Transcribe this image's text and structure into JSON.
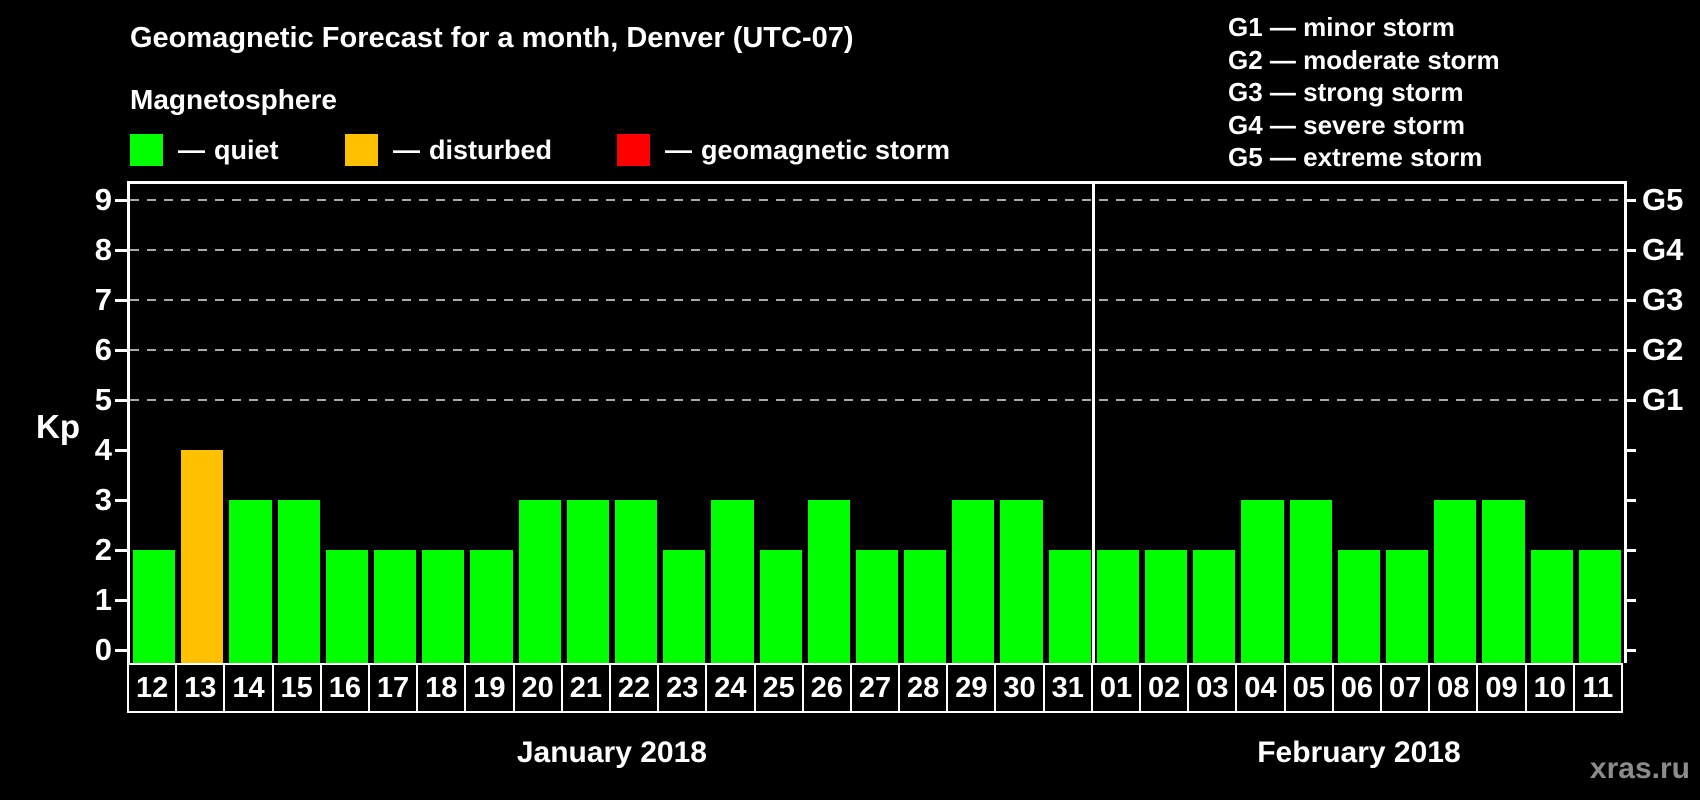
{
  "legend": {
    "separator": "—",
    "items": [
      {
        "name": "quiet",
        "label": "quiet",
        "color": "#00ff00"
      },
      {
        "name": "disturbed",
        "label": "disturbed",
        "color": "#ffc000"
      },
      {
        "name": "storm",
        "label": "geomagnetic storm",
        "color": "#ff0000"
      }
    ]
  },
  "storm_scale": [
    {
      "code": "G1",
      "kp": 5,
      "description": "minor storm"
    },
    {
      "code": "G2",
      "kp": 6,
      "description": "moderate storm"
    },
    {
      "code": "G3",
      "kp": 7,
      "description": "strong storm"
    },
    {
      "code": "G4",
      "kp": 8,
      "description": "severe storm"
    },
    {
      "code": "G5",
      "kp": 9,
      "description": "extreme storm"
    }
  ],
  "watermark": "xras.ru",
  "chart_data": {
    "type": "bar",
    "title": "Geomagnetic Forecast for a month, Denver (UTC-07)",
    "subtitle": "Magnetosphere",
    "ylabel": "Kp",
    "ylim": [
      0,
      9
    ],
    "yticks": [
      0,
      1,
      2,
      3,
      4,
      5,
      6,
      7,
      8,
      9
    ],
    "grid_on": true,
    "grid_levels": [
      5,
      6,
      7,
      8,
      9
    ],
    "legend_position": "top-left",
    "right_axis": "storm-scale G1-G5 at Kp 5-9",
    "colors": {
      "quiet": "#00ff00",
      "disturbed": "#ffc000",
      "storm": "#ff0000",
      "background": "#000000",
      "text": "#ffffff",
      "grid": "#aaaaaa",
      "watermark": "#8c8c8c"
    },
    "color_thresholds": {
      "disturbed_from_kp": 4,
      "storm_from_kp": 5
    },
    "months": [
      {
        "label": "January 2018",
        "days": [
          "12",
          "13",
          "14",
          "15",
          "16",
          "17",
          "18",
          "19",
          "20",
          "21",
          "22",
          "23",
          "24",
          "25",
          "26",
          "27",
          "28",
          "29",
          "30",
          "31"
        ],
        "values": [
          2,
          4,
          3,
          3,
          2,
          2,
          2,
          2,
          3,
          3,
          3,
          2,
          3,
          2,
          3,
          2,
          2,
          3,
          3,
          2
        ]
      },
      {
        "label": "February 2018",
        "days": [
          "01",
          "02",
          "03",
          "04",
          "05",
          "06",
          "07",
          "08",
          "09",
          "10",
          "11"
        ],
        "values": [
          2,
          2,
          2,
          3,
          3,
          2,
          2,
          3,
          3,
          2,
          2
        ]
      }
    ]
  }
}
